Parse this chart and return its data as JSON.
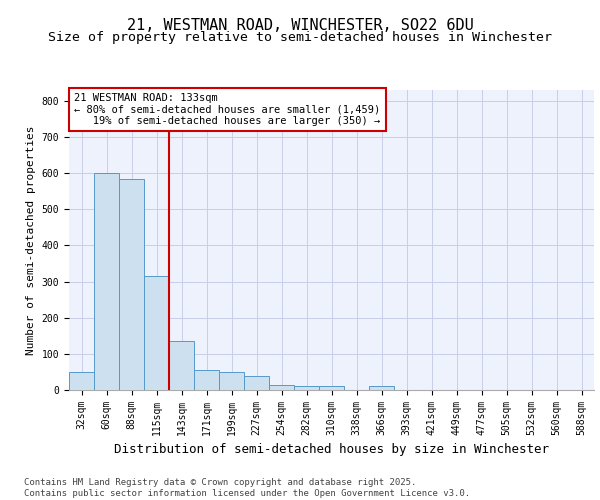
{
  "title1": "21, WESTMAN ROAD, WINCHESTER, SO22 6DU",
  "title2": "Size of property relative to semi-detached houses in Winchester",
  "xlabel": "Distribution of semi-detached houses by size in Winchester",
  "ylabel": "Number of semi-detached properties",
  "categories": [
    "32sqm",
    "60sqm",
    "88sqm",
    "115sqm",
    "143sqm",
    "171sqm",
    "199sqm",
    "227sqm",
    "254sqm",
    "282sqm",
    "310sqm",
    "338sqm",
    "366sqm",
    "393sqm",
    "421sqm",
    "449sqm",
    "477sqm",
    "505sqm",
    "532sqm",
    "560sqm",
    "588sqm"
  ],
  "values": [
    50,
    600,
    585,
    315,
    135,
    55,
    50,
    40,
    15,
    10,
    10,
    0,
    10,
    0,
    0,
    0,
    0,
    0,
    0,
    0,
    0
  ],
  "bar_color": "#cce0f0",
  "bar_edge_color": "#5599cc",
  "highlight_line_color": "#cc0000",
  "annotation_box_color": "#cc0000",
  "annotation_line1": "21 WESTMAN ROAD: 133sqm",
  "annotation_line2": "← 80% of semi-detached houses are smaller (1,459)",
  "annotation_line3": "   19% of semi-detached houses are larger (350) →",
  "ylim": [
    0,
    830
  ],
  "yticks": [
    0,
    100,
    200,
    300,
    400,
    500,
    600,
    700,
    800
  ],
  "footer1": "Contains HM Land Registry data © Crown copyright and database right 2025.",
  "footer2": "Contains public sector information licensed under the Open Government Licence v3.0.",
  "bg_color": "#eef2fc",
  "grid_color": "#c8cee8",
  "title1_fontsize": 11,
  "title2_fontsize": 9.5,
  "tick_fontsize": 7,
  "ylabel_fontsize": 8,
  "xlabel_fontsize": 9,
  "annotation_fontsize": 7.5,
  "footer_fontsize": 6.5
}
